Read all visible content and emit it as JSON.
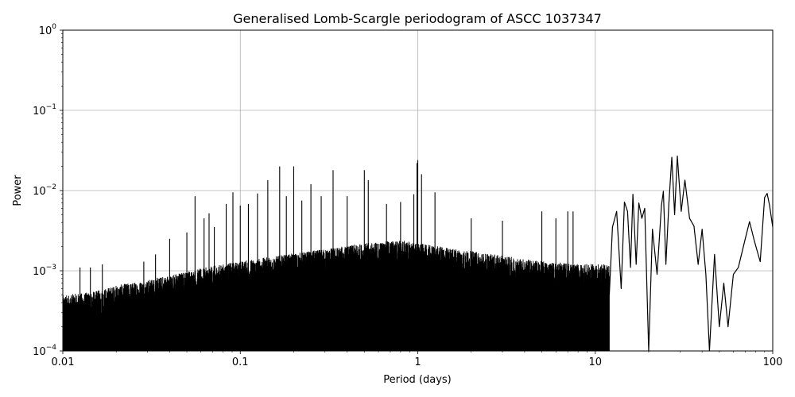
{
  "chart_data": {
    "type": "line",
    "title": "Generalised Lomb-Scargle periodogram of ASCC 1037347",
    "xlabel": "Period (days)",
    "ylabel": "Power",
    "xscale": "log",
    "yscale": "log",
    "xlim": [
      0.01,
      100
    ],
    "ylim": [
      0.0001,
      1
    ],
    "grid": true,
    "x_ticks": [
      {
        "value": 0.01,
        "label": "0.01"
      },
      {
        "value": 0.1,
        "label": "0.1"
      },
      {
        "value": 1,
        "label": "1"
      },
      {
        "value": 10,
        "label": "10"
      },
      {
        "value": 100,
        "label": "100"
      }
    ],
    "y_ticks": [
      {
        "value": 0.0001,
        "base": "10",
        "exp": "−4"
      },
      {
        "value": 0.001,
        "base": "10",
        "exp": "−3"
      },
      {
        "value": 0.01,
        "base": "10",
        "exp": "−2"
      },
      {
        "value": 0.1,
        "base": "10",
        "exp": "−1"
      },
      {
        "value": 1,
        "base": "10",
        "exp": "0"
      }
    ],
    "series": [
      {
        "color": "#000000",
        "noise_envelope": {
          "description_points": [
            [
              0.01,
              0.00045
            ],
            [
              0.015,
              0.0005
            ],
            [
              0.02,
              0.0006
            ],
            [
              0.03,
              0.0007
            ],
            [
              0.05,
              0.0009
            ],
            [
              0.08,
              0.0011
            ],
            [
              0.1,
              0.0012
            ],
            [
              0.2,
              0.0015
            ],
            [
              0.3,
              0.0017
            ],
            [
              0.5,
              0.002
            ],
            [
              0.8,
              0.0022
            ],
            [
              1.0,
              0.002
            ],
            [
              2.0,
              0.0016
            ],
            [
              3.0,
              0.0014
            ],
            [
              5.0,
              0.0012
            ],
            [
              8.0,
              0.0011
            ]
          ]
        },
        "peaks": [
          [
            0.0125,
            0.0011
          ],
          [
            0.0143,
            0.0011
          ],
          [
            0.0167,
            0.0012
          ],
          [
            0.0286,
            0.0013
          ],
          [
            0.0333,
            0.0016
          ],
          [
            0.04,
            0.0025
          ],
          [
            0.05,
            0.003
          ],
          [
            0.0556,
            0.0085
          ],
          [
            0.0625,
            0.0045
          ],
          [
            0.0667,
            0.0052
          ],
          [
            0.0714,
            0.0035
          ],
          [
            0.0833,
            0.0068
          ],
          [
            0.0909,
            0.0095
          ],
          [
            0.1,
            0.0065
          ],
          [
            0.1111,
            0.0068
          ],
          [
            0.125,
            0.0092
          ],
          [
            0.1429,
            0.0135
          ],
          [
            0.1667,
            0.02
          ],
          [
            0.1818,
            0.0085
          ],
          [
            0.2,
            0.02
          ],
          [
            0.2222,
            0.0075
          ],
          [
            0.25,
            0.012
          ],
          [
            0.2857,
            0.0085
          ],
          [
            0.3333,
            0.018
          ],
          [
            0.4,
            0.0085
          ],
          [
            0.5,
            0.018
          ],
          [
            0.5263,
            0.0135
          ],
          [
            0.6667,
            0.0068
          ],
          [
            0.8,
            0.0072
          ],
          [
            0.95,
            0.009
          ],
          [
            0.99,
            0.022
          ],
          [
            1.0,
            0.024
          ],
          [
            1.05,
            0.016
          ],
          [
            1.25,
            0.0095
          ],
          [
            2.0,
            0.0045
          ],
          [
            3.0,
            0.0042
          ],
          [
            5.0,
            0.0055
          ],
          [
            6.0,
            0.0045
          ],
          [
            7.0,
            0.0055
          ],
          [
            7.5,
            0.0055
          ]
        ],
        "long_period_curve": [
          [
            12.0,
            0.0005
          ],
          [
            12.5,
            0.0035
          ],
          [
            13.2,
            0.0055
          ],
          [
            14.0,
            0.0006
          ],
          [
            14.6,
            0.0072
          ],
          [
            15.2,
            0.0055
          ],
          [
            15.8,
            0.0011
          ],
          [
            16.3,
            0.009
          ],
          [
            17.0,
            0.0012
          ],
          [
            17.6,
            0.007
          ],
          [
            18.3,
            0.0045
          ],
          [
            19.0,
            0.006
          ],
          [
            20.0,
            0.0001
          ],
          [
            21.0,
            0.0033
          ],
          [
            22.3,
            0.0009
          ],
          [
            23.6,
            0.0065
          ],
          [
            24.2,
            0.0098
          ],
          [
            25.0,
            0.0012
          ],
          [
            26.0,
            0.007
          ],
          [
            27.0,
            0.026
          ],
          [
            28.0,
            0.005
          ],
          [
            29.0,
            0.027
          ],
          [
            30.5,
            0.0055
          ],
          [
            32.0,
            0.0135
          ],
          [
            34.0,
            0.0045
          ],
          [
            36.0,
            0.0036
          ],
          [
            38.0,
            0.0012
          ],
          [
            40.0,
            0.0033
          ],
          [
            42.0,
            0.0009
          ],
          [
            44.0,
            0.0001
          ],
          [
            47.0,
            0.0016
          ],
          [
            50.0,
            0.0002
          ],
          [
            53.0,
            0.0007
          ],
          [
            56.0,
            0.0002
          ],
          [
            60.0,
            0.0009
          ],
          [
            64.0,
            0.0011
          ],
          [
            70.0,
            0.0025
          ],
          [
            74.0,
            0.0041
          ],
          [
            79.0,
            0.0023
          ],
          [
            85.0,
            0.0013
          ],
          [
            90.0,
            0.0082
          ],
          [
            93.0,
            0.0092
          ],
          [
            96.0,
            0.0065
          ],
          [
            100.0,
            0.0035
          ]
        ]
      }
    ]
  }
}
